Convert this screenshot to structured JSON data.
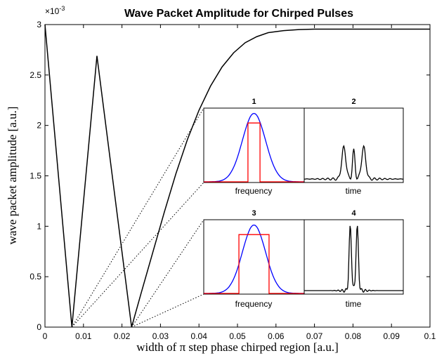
{
  "chart_data": {
    "type": "line",
    "title": "Wave Packet Amplitude for Chirped Pulses",
    "xlabel": "width of π step phase chirped region [a.u.]",
    "ylabel": "wave packet amplitude [a.u.]",
    "xlim": [
      0,
      0.1
    ],
    "ylim": [
      0,
      3
    ],
    "y_exponent_label": "×10",
    "y_exponent": "-3",
    "xticks": [
      "0",
      "0.01",
      "0.02",
      "0.03",
      "0.04",
      "0.05",
      "0.06",
      "0.07",
      "0.08",
      "0.09",
      "0.1"
    ],
    "yticks": [
      "0",
      "0.5",
      "1",
      "1.5",
      "2",
      "2.5",
      "3"
    ],
    "grid": false,
    "series": [
      {
        "color": "#000000",
        "x": [
          0,
          0.007,
          0.0135,
          0.0225,
          0.025,
          0.028,
          0.031,
          0.034,
          0.037,
          0.04,
          0.043,
          0.046,
          0.049,
          0.052,
          0.055,
          0.058,
          0.062,
          0.066,
          0.07,
          0.08,
          0.09,
          0.1
        ],
        "y": [
          3.0,
          0.0,
          2.69,
          0.0,
          0.34,
          0.74,
          1.14,
          1.52,
          1.86,
          2.15,
          2.39,
          2.58,
          2.72,
          2.82,
          2.88,
          2.92,
          2.94,
          2.95,
          2.955,
          2.955,
          2.955,
          2.955
        ]
      }
    ],
    "insets": [
      {
        "title": "1",
        "xlabel": "frequency",
        "kind": "frequency",
        "rect_halfwidth": 0.12
      },
      {
        "title": "2",
        "xlabel": "time",
        "kind": "time"
      },
      {
        "title": "3",
        "xlabel": "frequency",
        "kind": "frequency",
        "rect_halfwidth": 0.3
      },
      {
        "title": "4",
        "xlabel": "time",
        "kind": "time"
      }
    ],
    "colors": {
      "line": "#000000",
      "gaussian": "#0000ff",
      "window": "#ff0000"
    }
  }
}
